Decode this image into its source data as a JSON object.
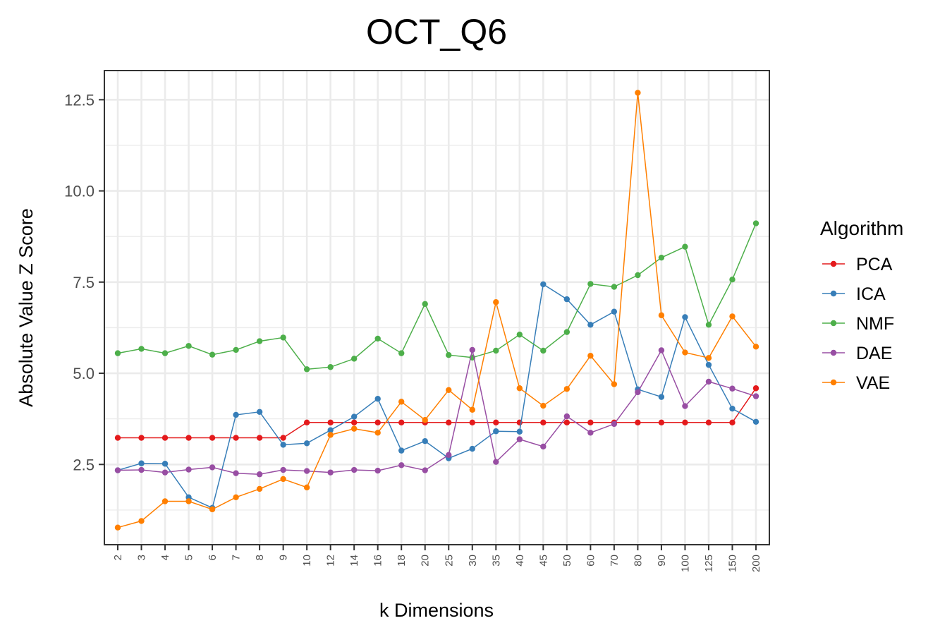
{
  "chart_data": {
    "type": "line",
    "title": "OCT_Q6",
    "xlabel": "k Dimensions",
    "ylabel": "Absolute Value Z Score",
    "categories": [
      "2",
      "3",
      "4",
      "5",
      "6",
      "7",
      "8",
      "9",
      "10",
      "12",
      "14",
      "16",
      "18",
      "20",
      "25",
      "30",
      "35",
      "40",
      "45",
      "50",
      "60",
      "70",
      "80",
      "90",
      "100",
      "125",
      "150",
      "200"
    ],
    "ylim": [
      0.3,
      13.3
    ],
    "yticks": [
      2.5,
      5.0,
      7.5,
      10.0,
      12.5
    ],
    "ytick_labels": [
      "2.5",
      "5.0",
      "7.5",
      "10.0",
      "12.5"
    ],
    "grid": true,
    "legend": {
      "title": "Algorithm",
      "position": "right"
    },
    "series": [
      {
        "name": "PCA",
        "color": "#e41a1c",
        "values": [
          3.23,
          3.23,
          3.23,
          3.23,
          3.23,
          3.23,
          3.23,
          3.23,
          3.65,
          3.65,
          3.65,
          3.65,
          3.65,
          3.65,
          3.65,
          3.65,
          3.65,
          3.65,
          3.65,
          3.65,
          3.65,
          3.65,
          3.65,
          3.65,
          3.65,
          3.65,
          3.65,
          4.59
        ]
      },
      {
        "name": "ICA",
        "color": "#377eb8",
        "values": [
          2.34,
          2.53,
          2.52,
          1.6,
          1.31,
          3.86,
          3.94,
          3.04,
          3.08,
          3.44,
          3.81,
          4.3,
          2.88,
          3.14,
          2.67,
          2.93,
          3.41,
          3.4,
          7.44,
          7.03,
          6.33,
          6.69,
          4.56,
          4.35,
          6.54,
          5.23,
          4.03,
          3.67
        ]
      },
      {
        "name": "NMF",
        "color": "#4daf4a",
        "values": [
          5.55,
          5.67,
          5.55,
          5.75,
          5.51,
          5.64,
          5.88,
          5.98,
          5.11,
          5.17,
          5.4,
          5.95,
          5.55,
          6.9,
          5.5,
          5.43,
          5.62,
          6.06,
          5.62,
          6.13,
          7.45,
          7.37,
          7.69,
          8.17,
          8.47,
          6.33,
          7.57,
          9.11
        ]
      },
      {
        "name": "DAE",
        "color": "#984ea3",
        "values": [
          2.34,
          2.35,
          2.28,
          2.36,
          2.42,
          2.26,
          2.23,
          2.35,
          2.32,
          2.28,
          2.35,
          2.33,
          2.48,
          2.34,
          2.76,
          5.64,
          2.57,
          3.19,
          2.99,
          3.82,
          3.37,
          3.61,
          4.48,
          5.63,
          4.1,
          4.77,
          4.58,
          4.37
        ]
      },
      {
        "name": "VAE",
        "color": "#ff7f00",
        "values": [
          0.77,
          0.95,
          1.49,
          1.49,
          1.27,
          1.6,
          1.83,
          2.1,
          1.87,
          3.31,
          3.48,
          3.37,
          4.22,
          3.72,
          4.54,
          4.0,
          6.95,
          4.59,
          4.11,
          4.57,
          5.48,
          4.7,
          12.69,
          6.59,
          5.57,
          5.42,
          6.56,
          5.73
        ]
      }
    ]
  }
}
